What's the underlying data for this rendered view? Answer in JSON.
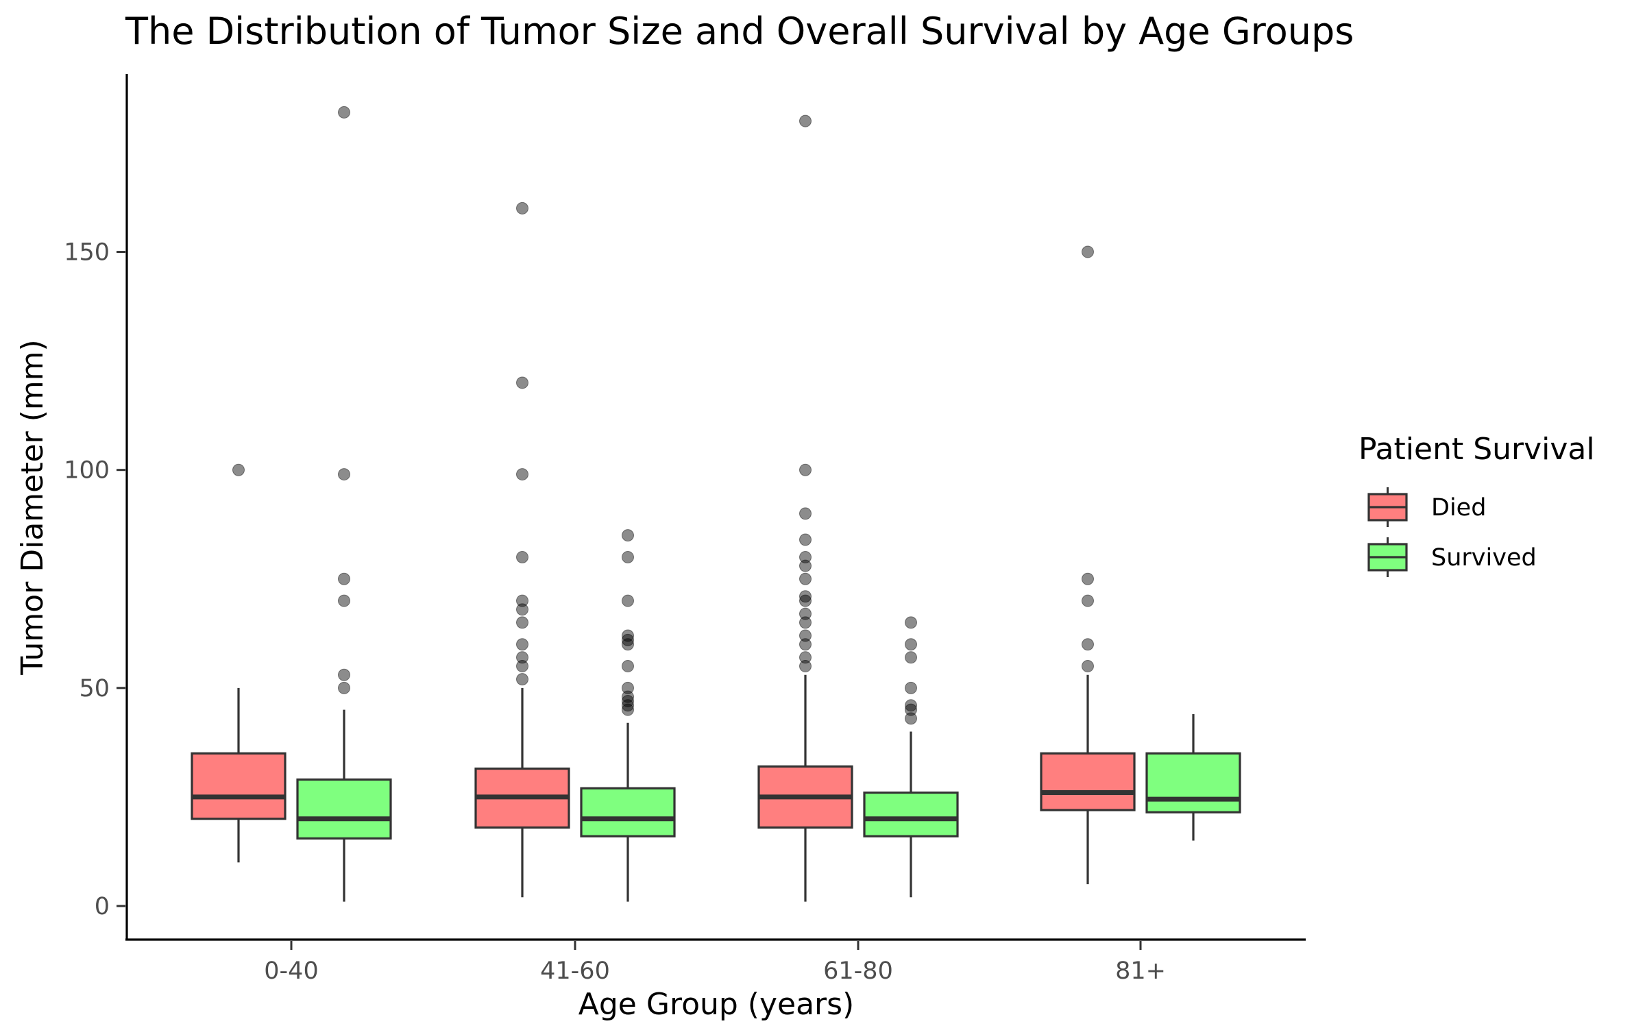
{
  "chart_data": {
    "type": "box",
    "title": "The Distribution of Tumor Size and Overall Survival by Age Groups",
    "xlabel": "Age Group (years)",
    "ylabel": "Tumor Diameter (mm)",
    "categories": [
      "0-40",
      "41-60",
      "61-80",
      "81+"
    ],
    "yticks": [
      0,
      50,
      100,
      150
    ],
    "ylim": [
      -8,
      190
    ],
    "legend": {
      "title": "Patient Survival",
      "position": "right",
      "items": [
        {
          "label": "Died",
          "color": "#ff7f7f"
        },
        {
          "label": "Survived",
          "color": "#7fff7f"
        }
      ]
    },
    "series": [
      {
        "name": "Died",
        "color": "#ff7f7f",
        "boxes": [
          {
            "category": "0-40",
            "whisker_low": 10,
            "q1": 20,
            "median": 25,
            "q3": 35,
            "whisker_high": 50,
            "outliers": [
              100
            ]
          },
          {
            "category": "41-60",
            "whisker_low": 2,
            "q1": 18,
            "median": 25,
            "q3": 31.5,
            "whisker_high": 50,
            "outliers": [
              52,
              55,
              57,
              60,
              65,
              68,
              70,
              80,
              99,
              120,
              160
            ]
          },
          {
            "category": "61-80",
            "whisker_low": 1,
            "q1": 18,
            "median": 25,
            "q3": 32,
            "whisker_high": 53,
            "outliers": [
              55,
              57,
              60,
              62,
              65,
              67,
              70,
              71,
              75,
              78,
              80,
              84,
              90,
              100,
              180
            ]
          },
          {
            "category": "81+",
            "whisker_low": 5,
            "q1": 22,
            "median": 26,
            "q3": 35,
            "whisker_high": 53,
            "outliers": [
              55,
              60,
              70,
              75,
              150
            ]
          }
        ]
      },
      {
        "name": "Survived",
        "color": "#7fff7f",
        "boxes": [
          {
            "category": "0-40",
            "whisker_low": 1,
            "q1": 15.5,
            "median": 20,
            "q3": 29,
            "whisker_high": 45,
            "outliers": [
              50,
              53,
              70,
              75,
              99,
              182
            ]
          },
          {
            "category": "41-60",
            "whisker_low": 1,
            "q1": 16,
            "median": 20,
            "q3": 27,
            "whisker_high": 42,
            "outliers": [
              45,
              46,
              47,
              48,
              50,
              55,
              60,
              61,
              62,
              70,
              80,
              85
            ]
          },
          {
            "category": "61-80",
            "whisker_low": 2,
            "q1": 16,
            "median": 20,
            "q3": 26,
            "whisker_high": 40,
            "outliers": [
              43,
              45,
              46,
              50,
              57,
              60,
              65
            ]
          },
          {
            "category": "81+",
            "whisker_low": 15,
            "q1": 21.5,
            "median": 24.5,
            "q3": 35,
            "whisker_high": 44,
            "outliers": []
          }
        ]
      }
    ]
  }
}
